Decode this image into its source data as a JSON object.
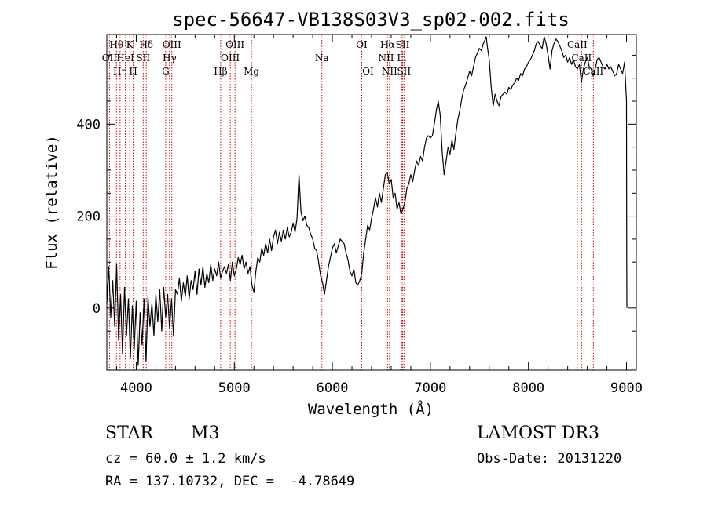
{
  "chart_data": {
    "type": "line",
    "title": "spec-56647-VB138S03V3_sp02-002.fits",
    "xlabel": "Wavelength (Å)",
    "ylabel": "Flux (relative)",
    "xlim": [
      3700,
      9100
    ],
    "ylim": [
      -135,
      595
    ],
    "x_ticks": [
      4000,
      5000,
      6000,
      7000,
      8000,
      9000
    ],
    "y_ticks": [
      0,
      200,
      400
    ],
    "grid": false,
    "series": [
      {
        "color": "#000000",
        "points": [
          [
            3700,
            10
          ],
          [
            3720,
            90
          ],
          [
            3740,
            -20
          ],
          [
            3760,
            60
          ],
          [
            3780,
            -40
          ],
          [
            3800,
            95
          ],
          [
            3820,
            -70
          ],
          [
            3840,
            30
          ],
          [
            3860,
            -100
          ],
          [
            3880,
            45
          ],
          [
            3900,
            -60
          ],
          [
            3920,
            20
          ],
          [
            3940,
            -110
          ],
          [
            3960,
            5
          ],
          [
            3980,
            -90
          ],
          [
            4000,
            15
          ],
          [
            4020,
            -125
          ],
          [
            4040,
            -10
          ],
          [
            4060,
            -80
          ],
          [
            4080,
            20
          ],
          [
            4100,
            -115
          ],
          [
            4120,
            25
          ],
          [
            4140,
            -40
          ],
          [
            4160,
            10
          ],
          [
            4180,
            -60
          ],
          [
            4200,
            30
          ],
          [
            4220,
            -30
          ],
          [
            4240,
            40
          ],
          [
            4260,
            -50
          ],
          [
            4280,
            45
          ],
          [
            4300,
            -20
          ],
          [
            4320,
            30
          ],
          [
            4340,
            -45
          ],
          [
            4360,
            20
          ],
          [
            4380,
            -60
          ],
          [
            4400,
            40
          ],
          [
            4420,
            30
          ],
          [
            4440,
            65
          ],
          [
            4460,
            15
          ],
          [
            4480,
            55
          ],
          [
            4500,
            25
          ],
          [
            4520,
            70
          ],
          [
            4540,
            20
          ],
          [
            4560,
            60
          ],
          [
            4580,
            40
          ],
          [
            4600,
            80
          ],
          [
            4620,
            30
          ],
          [
            4640,
            85
          ],
          [
            4660,
            50
          ],
          [
            4680,
            90
          ],
          [
            4700,
            45
          ],
          [
            4720,
            75
          ],
          [
            4740,
            55
          ],
          [
            4760,
            95
          ],
          [
            4780,
            60
          ],
          [
            4800,
            85
          ],
          [
            4820,
            70
          ],
          [
            4840,
            100
          ],
          [
            4860,
            65
          ],
          [
            4880,
            80
          ],
          [
            4900,
            90
          ],
          [
            4920,
            75
          ],
          [
            4940,
            95
          ],
          [
            4960,
            60
          ],
          [
            4980,
            100
          ],
          [
            5000,
            70
          ],
          [
            5020,
            85
          ],
          [
            5040,
            110
          ],
          [
            5060,
            95
          ],
          [
            5080,
            115
          ],
          [
            5100,
            85
          ],
          [
            5120,
            100
          ],
          [
            5140,
            75
          ],
          [
            5160,
            90
          ],
          [
            5180,
            50
          ],
          [
            5200,
            35
          ],
          [
            5220,
            80
          ],
          [
            5240,
            110
          ],
          [
            5260,
            100
          ],
          [
            5280,
            130
          ],
          [
            5300,
            115
          ],
          [
            5320,
            140
          ],
          [
            5340,
            120
          ],
          [
            5360,
            150
          ],
          [
            5380,
            125
          ],
          [
            5400,
            155
          ],
          [
            5420,
            170
          ],
          [
            5440,
            140
          ],
          [
            5460,
            165
          ],
          [
            5480,
            145
          ],
          [
            5500,
            170
          ],
          [
            5520,
            150
          ],
          [
            5540,
            175
          ],
          [
            5560,
            155
          ],
          [
            5580,
            165
          ],
          [
            5600,
            185
          ],
          [
            5620,
            165
          ],
          [
            5640,
            195
          ],
          [
            5660,
            290
          ],
          [
            5680,
            210
          ],
          [
            5700,
            190
          ],
          [
            5720,
            200
          ],
          [
            5740,
            180
          ],
          [
            5760,
            175
          ],
          [
            5780,
            160
          ],
          [
            5800,
            150
          ],
          [
            5820,
            130
          ],
          [
            5840,
            125
          ],
          [
            5860,
            100
          ],
          [
            5880,
            70
          ],
          [
            5900,
            55
          ],
          [
            5920,
            30
          ],
          [
            5940,
            60
          ],
          [
            5960,
            90
          ],
          [
            5980,
            110
          ],
          [
            6000,
            130
          ],
          [
            6020,
            140
          ],
          [
            6040,
            120
          ],
          [
            6060,
            135
          ],
          [
            6080,
            150
          ],
          [
            6100,
            145
          ],
          [
            6120,
            140
          ],
          [
            6140,
            120
          ],
          [
            6160,
            105
          ],
          [
            6180,
            80
          ],
          [
            6200,
            70
          ],
          [
            6220,
            85
          ],
          [
            6240,
            55
          ],
          [
            6260,
            50
          ],
          [
            6280,
            60
          ],
          [
            6300,
            75
          ],
          [
            6320,
            120
          ],
          [
            6340,
            150
          ],
          [
            6360,
            180
          ],
          [
            6380,
            170
          ],
          [
            6400,
            195
          ],
          [
            6420,
            215
          ],
          [
            6440,
            240
          ],
          [
            6460,
            220
          ],
          [
            6480,
            250
          ],
          [
            6500,
            230
          ],
          [
            6520,
            260
          ],
          [
            6540,
            290
          ],
          [
            6560,
            295
          ],
          [
            6580,
            270
          ],
          [
            6600,
            280
          ],
          [
            6620,
            240
          ],
          [
            6640,
            250
          ],
          [
            6660,
            215
          ],
          [
            6680,
            230
          ],
          [
            6700,
            205
          ],
          [
            6720,
            215
          ],
          [
            6740,
            230
          ],
          [
            6760,
            260
          ],
          [
            6780,
            270
          ],
          [
            6800,
            290
          ],
          [
            6820,
            275
          ],
          [
            6840,
            300
          ],
          [
            6860,
            320
          ],
          [
            6880,
            310
          ],
          [
            6900,
            330
          ],
          [
            6920,
            320
          ],
          [
            6940,
            350
          ],
          [
            6960,
            370
          ],
          [
            6980,
            375
          ],
          [
            7000,
            370
          ],
          [
            7020,
            375
          ],
          [
            7040,
            400
          ],
          [
            7060,
            430
          ],
          [
            7080,
            450
          ],
          [
            7100,
            420
          ],
          [
            7120,
            340
          ],
          [
            7140,
            290
          ],
          [
            7160,
            320
          ],
          [
            7180,
            350
          ],
          [
            7200,
            335
          ],
          [
            7220,
            365
          ],
          [
            7240,
            345
          ],
          [
            7260,
            380
          ],
          [
            7280,
            410
          ],
          [
            7300,
            430
          ],
          [
            7320,
            455
          ],
          [
            7340,
            475
          ],
          [
            7360,
            485
          ],
          [
            7380,
            500
          ],
          [
            7400,
            515
          ],
          [
            7420,
            505
          ],
          [
            7440,
            525
          ],
          [
            7460,
            545
          ],
          [
            7480,
            555
          ],
          [
            7500,
            565
          ],
          [
            7520,
            560
          ],
          [
            7540,
            575
          ],
          [
            7560,
            585
          ],
          [
            7570,
            590
          ],
          [
            7580,
            570
          ],
          [
            7600,
            540
          ],
          [
            7620,
            480
          ],
          [
            7640,
            440
          ],
          [
            7660,
            465
          ],
          [
            7680,
            450
          ],
          [
            7700,
            440
          ],
          [
            7720,
            460
          ],
          [
            7740,
            465
          ],
          [
            7760,
            470
          ],
          [
            7780,
            465
          ],
          [
            7800,
            480
          ],
          [
            7820,
            475
          ],
          [
            7840,
            485
          ],
          [
            7860,
            490
          ],
          [
            7880,
            500
          ],
          [
            7900,
            495
          ],
          [
            7920,
            510
          ],
          [
            7940,
            505
          ],
          [
            7960,
            520
          ],
          [
            7980,
            525
          ],
          [
            8000,
            535
          ],
          [
            8020,
            540
          ],
          [
            8040,
            550
          ],
          [
            8060,
            560
          ],
          [
            8080,
            575
          ],
          [
            8100,
            580
          ],
          [
            8120,
            570
          ],
          [
            8140,
            565
          ],
          [
            8160,
            590
          ],
          [
            8180,
            575
          ],
          [
            8200,
            550
          ],
          [
            8220,
            520
          ],
          [
            8240,
            560
          ],
          [
            8260,
            575
          ],
          [
            8280,
            585
          ],
          [
            8300,
            580
          ],
          [
            8320,
            570
          ],
          [
            8340,
            560
          ],
          [
            8360,
            545
          ],
          [
            8380,
            550
          ],
          [
            8400,
            535
          ],
          [
            8420,
            545
          ],
          [
            8440,
            530
          ],
          [
            8460,
            540
          ],
          [
            8480,
            525
          ],
          [
            8500,
            520
          ],
          [
            8520,
            530
          ],
          [
            8540,
            490
          ],
          [
            8560,
            520
          ],
          [
            8580,
            535
          ],
          [
            8600,
            545
          ],
          [
            8620,
            525
          ],
          [
            8640,
            520
          ],
          [
            8660,
            505
          ],
          [
            8680,
            520
          ],
          [
            8700,
            540
          ],
          [
            8720,
            545
          ],
          [
            8740,
            535
          ],
          [
            8760,
            525
          ],
          [
            8780,
            520
          ],
          [
            8800,
            530
          ],
          [
            8820,
            520
          ],
          [
            8840,
            525
          ],
          [
            8860,
            515
          ],
          [
            8880,
            505
          ],
          [
            8900,
            510
          ],
          [
            8920,
            530
          ],
          [
            8940,
            520
          ],
          [
            8960,
            510
          ],
          [
            8980,
            535
          ],
          [
            9000,
            450
          ],
          [
            9002,
            100
          ],
          [
            9004,
            0
          ]
        ]
      }
    ],
    "lines": [
      {
        "wl": 3727,
        "label": "OII",
        "row": 1
      },
      {
        "wl": 3798,
        "label": "Hθ",
        "row": 0
      },
      {
        "wl": 3835,
        "label": "Hη",
        "row": 2
      },
      {
        "wl": 3889,
        "label": "HeI",
        "row": 1
      },
      {
        "wl": 3934,
        "label": "K",
        "row": 0
      },
      {
        "wl": 3969,
        "label": "H",
        "row": 2
      },
      {
        "wl": 4071,
        "label": "SII",
        "row": 1
      },
      {
        "wl": 4102,
        "label": "Hδ",
        "row": 0
      },
      {
        "wl": 4300,
        "label": "G",
        "row": 2
      },
      {
        "wl": 4340,
        "label": "Hγ",
        "row": 1
      },
      {
        "wl": 4363,
        "label": "OIII",
        "row": 0
      },
      {
        "wl": 4861,
        "label": "Hβ",
        "row": 2
      },
      {
        "wl": 4959,
        "label": "OIII",
        "row": 1
      },
      {
        "wl": 5007,
        "label": "OIII",
        "row": 0
      },
      {
        "wl": 5175,
        "label": "Mg",
        "row": 2
      },
      {
        "wl": 5893,
        "label": "Na",
        "row": 1
      },
      {
        "wl": 6300,
        "label": "OI",
        "row": 0
      },
      {
        "wl": 6364,
        "label": "OI",
        "row": 2
      },
      {
        "wl": 6548,
        "label": "NII",
        "row": 1
      },
      {
        "wl": 6563,
        "label": "Hα",
        "row": 0
      },
      {
        "wl": 6583,
        "label": "NII",
        "row": 2
      },
      {
        "wl": 6707,
        "label": "Li",
        "row": 1
      },
      {
        "wl": 6717,
        "label": "SII",
        "row": 0
      },
      {
        "wl": 6731,
        "label": "SII",
        "row": 2
      },
      {
        "wl": 8498,
        "label": "CaII",
        "row": 0
      },
      {
        "wl": 8542,
        "label": "CaII",
        "row": 1
      },
      {
        "wl": 8662,
        "label": "CaII",
        "row": 2
      }
    ],
    "line_color": "#cc0000"
  },
  "info": {
    "object_class": "STAR",
    "subclass": "M3",
    "cz": "cz = 60.0 ± 1.2 km/s",
    "coords": "RA = 137.10732, DEC =  -4.78649",
    "survey": "LAMOST DR3",
    "obs_date": "Obs-Date: 20131220"
  }
}
